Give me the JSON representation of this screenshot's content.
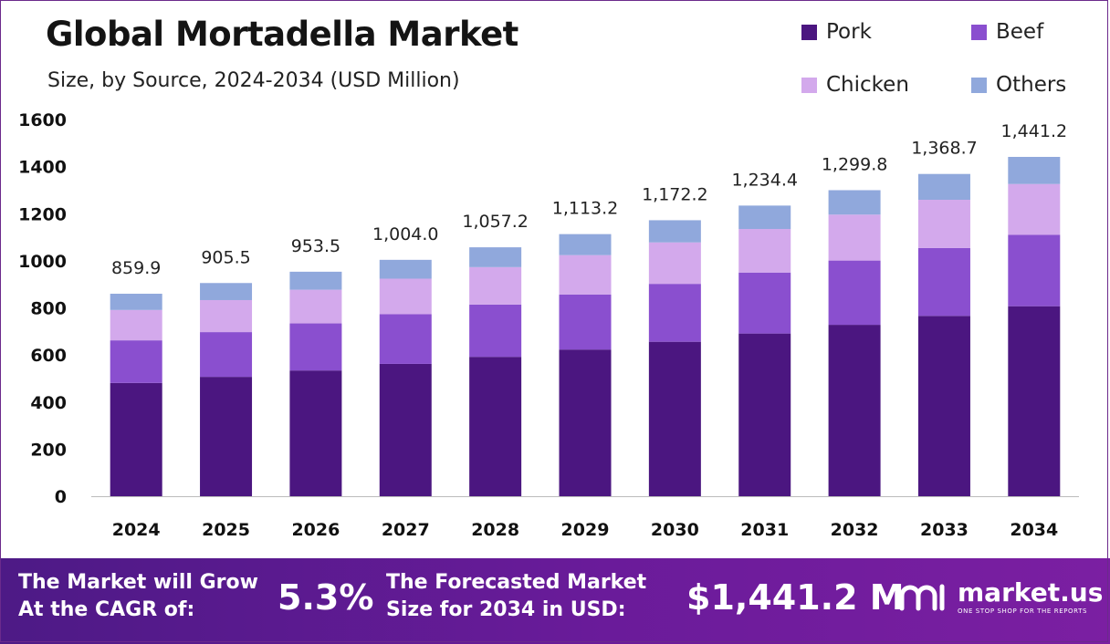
{
  "header": {
    "title": "Global Mortadella Market",
    "subtitle": "Size, by Source, 2024-2034 (USD Million)"
  },
  "chart_data": {
    "type": "bar",
    "stacked": true,
    "title": "Global Mortadella Market",
    "subtitle": "Size, by Source, 2024-2034 (USD Million)",
    "xlabel": "",
    "ylabel": "",
    "ylim": [
      0,
      1600
    ],
    "yticks": [
      0,
      200,
      400,
      600,
      800,
      1000,
      1200,
      1400,
      1600
    ],
    "grid": false,
    "legend_position": "top-right",
    "categories": [
      "2024",
      "2025",
      "2026",
      "2027",
      "2028",
      "2029",
      "2030",
      "2031",
      "2032",
      "2033",
      "2034"
    ],
    "totals": [
      859.9,
      905.5,
      953.5,
      1004.0,
      1057.2,
      1113.2,
      1172.2,
      1234.4,
      1299.8,
      1368.7,
      1441.2
    ],
    "total_labels": [
      "859.9",
      "905.5",
      "953.5",
      "1,004.0",
      "1,057.2",
      "1,113.2",
      "1,172.2",
      "1,234.4",
      "1,299.8",
      "1,368.7",
      "1,441.2"
    ],
    "series": [
      {
        "name": "Pork",
        "color": "#4b1680",
        "values": [
          481,
          507,
          534,
          562,
          592,
          623,
          656,
          691,
          728,
          766,
          807
        ]
      },
      {
        "name": "Beef",
        "color": "#8a4fcf",
        "values": [
          181,
          190,
          200,
          211,
          222,
          234,
          246,
          259,
          273,
          288,
          303
        ]
      },
      {
        "name": "Chicken",
        "color": "#d3a9ec",
        "values": [
          129,
          136,
          143,
          151,
          159,
          167,
          176,
          185,
          195,
          205,
          216
        ]
      },
      {
        "name": "Others",
        "color": "#90a8dc",
        "values": [
          69,
          72.5,
          76.5,
          80,
          84.2,
          89.2,
          94.2,
          99.4,
          103.8,
          109.7,
          115.2
        ]
      }
    ]
  },
  "footer": {
    "cagr_label_line1": "The Market will Grow",
    "cagr_label_line2": "At the CAGR of:",
    "cagr_value": "5.3%",
    "forecast_label_line1": "The Forecasted Market",
    "forecast_label_line2": "Size for 2034 in USD:",
    "forecast_value": "$1,441.2 M",
    "brand_name": "market.us",
    "brand_tagline": "ONE STOP SHOP FOR THE REPORTS"
  }
}
